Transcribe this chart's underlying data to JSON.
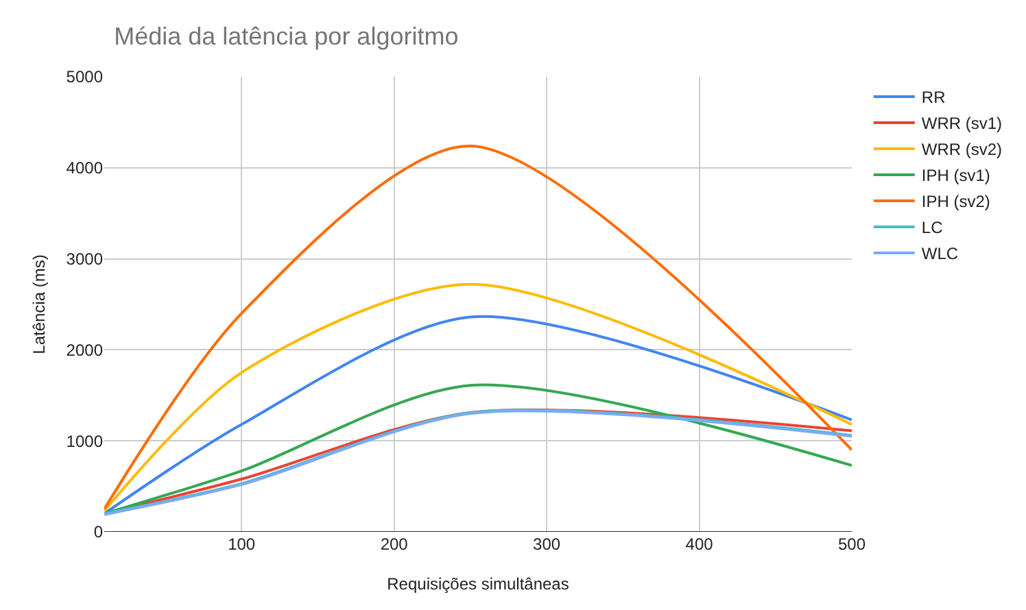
{
  "chart_data": {
    "type": "line",
    "title": "Média da latência por algoritmo",
    "xlabel": "Requisições simultâneas",
    "ylabel": "Latência (ms)",
    "x": [
      10,
      100,
      250,
      500
    ],
    "series": [
      {
        "name": "RR",
        "color": "#4285f4",
        "values": [
          200,
          1180,
          2360,
          1230
        ]
      },
      {
        "name": "WRR (sv1)",
        "color": "#ea4335",
        "values": [
          200,
          580,
          1310,
          1110
        ]
      },
      {
        "name": "WRR (sv2)",
        "color": "#fbbc04",
        "values": [
          230,
          1750,
          2720,
          1180
        ]
      },
      {
        "name": "IPH (sv1)",
        "color": "#34a853",
        "values": [
          200,
          670,
          1610,
          730
        ]
      },
      {
        "name": "IPH (sv2)",
        "color": "#ff6d01",
        "values": [
          250,
          2400,
          4240,
          900
        ]
      },
      {
        "name": "LC",
        "color": "#46bdc6",
        "values": [
          200,
          530,
          1310,
          1060
        ]
      },
      {
        "name": "WLC",
        "color": "#7baaf7",
        "values": [
          190,
          520,
          1300,
          1050
        ]
      }
    ],
    "xlim": [
      10,
      500
    ],
    "xticks": [
      100,
      200,
      300,
      400,
      500
    ],
    "ylim": [
      0,
      5000
    ],
    "yticks": [
      0,
      1000,
      2000,
      3000,
      4000,
      5000
    ],
    "grid": true,
    "legend": "right",
    "marker": "none",
    "line_style": "solid"
  }
}
